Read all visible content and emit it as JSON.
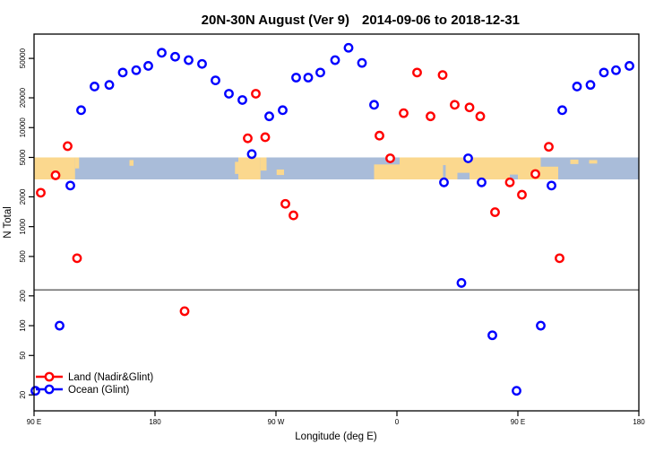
{
  "title": {
    "main": "20N-30N August (Ver 9)",
    "dates": "2014-09-06 to 2018-12-31"
  },
  "chart_data": {
    "type": "scatter",
    "title": "20N-30N August (Ver 9)  2014-09-06 to 2018-12-31",
    "xlabel": "Longitude (deg E)",
    "ylabel": "N Total",
    "x_domain": [
      90,
      540
    ],
    "x_ticks": [
      {
        "value": 90,
        "label": "90 E"
      },
      {
        "value": 180,
        "label": "180"
      },
      {
        "value": 270,
        "label": "90 W"
      },
      {
        "value": 360,
        "label": "0"
      },
      {
        "value": 450,
        "label": "90 E"
      },
      {
        "value": 540,
        "label": "180"
      }
    ],
    "y_scale": "log",
    "y_domain": [
      13.8,
      88000
    ],
    "y_ticks": [
      20,
      50,
      100,
      200,
      500,
      1000,
      2000,
      5000,
      10000,
      20000,
      50000
    ],
    "grid": false,
    "reference_line_n": 230,
    "map_band": {
      "n_from": 3000,
      "n_to": 5000,
      "ocean_color": "#a9bcd9",
      "land_color": "#fbd88e",
      "land_rects": [
        [
          90,
          120.5,
          0,
          1
        ],
        [
          120.5,
          123.5,
          0,
          0.5
        ],
        [
          161,
          164,
          0.12,
          0.38
        ],
        [
          239.5,
          242,
          0.2,
          0.75
        ],
        [
          242,
          258.5,
          0,
          1
        ],
        [
          258.5,
          263,
          0,
          0.6
        ],
        [
          270.5,
          276,
          0.55,
          0.8
        ],
        [
          343,
          480,
          0,
          1
        ],
        [
          489,
          495,
          0.1,
          0.3
        ],
        [
          503,
          509,
          0.12,
          0.28
        ]
      ],
      "ocean_patches": [
        [
          343,
          362,
          0,
          0.32
        ],
        [
          394.3,
          396.3,
          0.35,
          1
        ],
        [
          405,
          414,
          0.7,
          1
        ],
        [
          444,
          450,
          0.78,
          1
        ],
        [
          467,
          480,
          0,
          0.42
        ]
      ]
    },
    "legend": {
      "position": "bottom-left",
      "items": [
        {
          "label": "Land (Nadir&Glint)",
          "color": "#ff0000"
        },
        {
          "label": "Ocean (Glint)",
          "color": "#0000ff"
        }
      ]
    },
    "series": [
      {
        "name": "Land (Nadir&Glint)",
        "color": "#ff0000",
        "points": [
          [
            95,
            2200
          ],
          [
            106,
            3300
          ],
          [
            115,
            6500
          ],
          [
            122,
            480
          ],
          [
            202,
            140
          ],
          [
            249,
            7800
          ],
          [
            255,
            22000
          ],
          [
            262,
            8000
          ],
          [
            277,
            1700
          ],
          [
            283,
            1300
          ],
          [
            347,
            8300
          ],
          [
            355,
            4900
          ],
          [
            365,
            14000
          ],
          [
            375,
            36000
          ],
          [
            385,
            13000
          ],
          [
            394,
            34000
          ],
          [
            403,
            17000
          ],
          [
            414,
            16000
          ],
          [
            422,
            13000
          ],
          [
            433,
            1400
          ],
          [
            444,
            2800
          ],
          [
            453,
            2100
          ],
          [
            463,
            3400
          ],
          [
            473,
            6400
          ],
          [
            481,
            480
          ]
        ]
      },
      {
        "name": "Ocean (Glint)",
        "color": "#0000ff",
        "points": [
          [
            91,
            22
          ],
          [
            109,
            100
          ],
          [
            117,
            2600
          ],
          [
            125,
            15000
          ],
          [
            135,
            26000
          ],
          [
            146,
            27000
          ],
          [
            156,
            36000
          ],
          [
            166,
            38000
          ],
          [
            175,
            42000
          ],
          [
            185,
            57000
          ],
          [
            195,
            52000
          ],
          [
            205,
            48000
          ],
          [
            215,
            44000
          ],
          [
            225,
            30000
          ],
          [
            235,
            22000
          ],
          [
            245,
            19000
          ],
          [
            252,
            5400
          ],
          [
            265,
            13000
          ],
          [
            275,
            15000
          ],
          [
            285,
            32000
          ],
          [
            294,
            32000
          ],
          [
            303,
            36000
          ],
          [
            314,
            48000
          ],
          [
            324,
            64000
          ],
          [
            334,
            45000
          ],
          [
            343,
            17000
          ],
          [
            395,
            2800
          ],
          [
            408,
            270
          ],
          [
            413,
            4900
          ],
          [
            423,
            2800
          ],
          [
            431,
            80
          ],
          [
            449,
            22
          ],
          [
            467,
            100
          ],
          [
            475,
            2600
          ],
          [
            483,
            15000
          ],
          [
            494,
            26000
          ],
          [
            504,
            27000
          ],
          [
            514,
            36000
          ],
          [
            523,
            38000
          ],
          [
            533,
            42000
          ]
        ]
      }
    ]
  }
}
